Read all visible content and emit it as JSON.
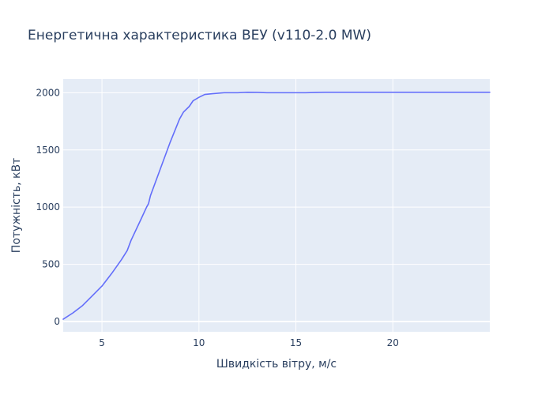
{
  "chart_data": {
    "type": "line",
    "title": "Енергетична характеристика ВЕУ (v110-2.0 MW)",
    "xlabel": "Швидкість вітру, м/с",
    "ylabel": "Потужність, кВт",
    "xlim": [
      3,
      25
    ],
    "ylim": [
      -90,
      2120
    ],
    "x_ticks": [
      5,
      10,
      15,
      20
    ],
    "y_ticks": [
      0,
      500,
      1000,
      1500,
      2000
    ],
    "grid": true,
    "background_color": "#e5ecf6",
    "series": [
      {
        "color": "#636efa",
        "x": [
          3,
          3.5,
          4,
          4.5,
          5,
          5.5,
          6,
          6.3,
          6.5,
          7,
          7.3,
          7.4,
          7.5,
          8,
          8.5,
          9,
          9.2,
          9.5,
          9.7,
          10,
          10.3,
          10.7,
          11.3,
          12,
          12.5,
          13,
          13.5,
          14,
          15,
          15.5,
          16,
          16.5,
          17,
          18,
          19,
          20,
          21,
          22,
          23,
          24,
          25
        ],
        "values": [
          20,
          75,
          140,
          225,
          310,
          420,
          540,
          620,
          710,
          890,
          1000,
          1030,
          1100,
          1330,
          1560,
          1770,
          1830,
          1880,
          1930,
          1960,
          1985,
          1992,
          2000,
          2000,
          2004,
          2003,
          2000,
          2000,
          2000,
          2000,
          2002,
          2004,
          2004,
          2004,
          2004,
          2004,
          2004,
          2004,
          2004,
          2004,
          2004
        ]
      }
    ]
  }
}
